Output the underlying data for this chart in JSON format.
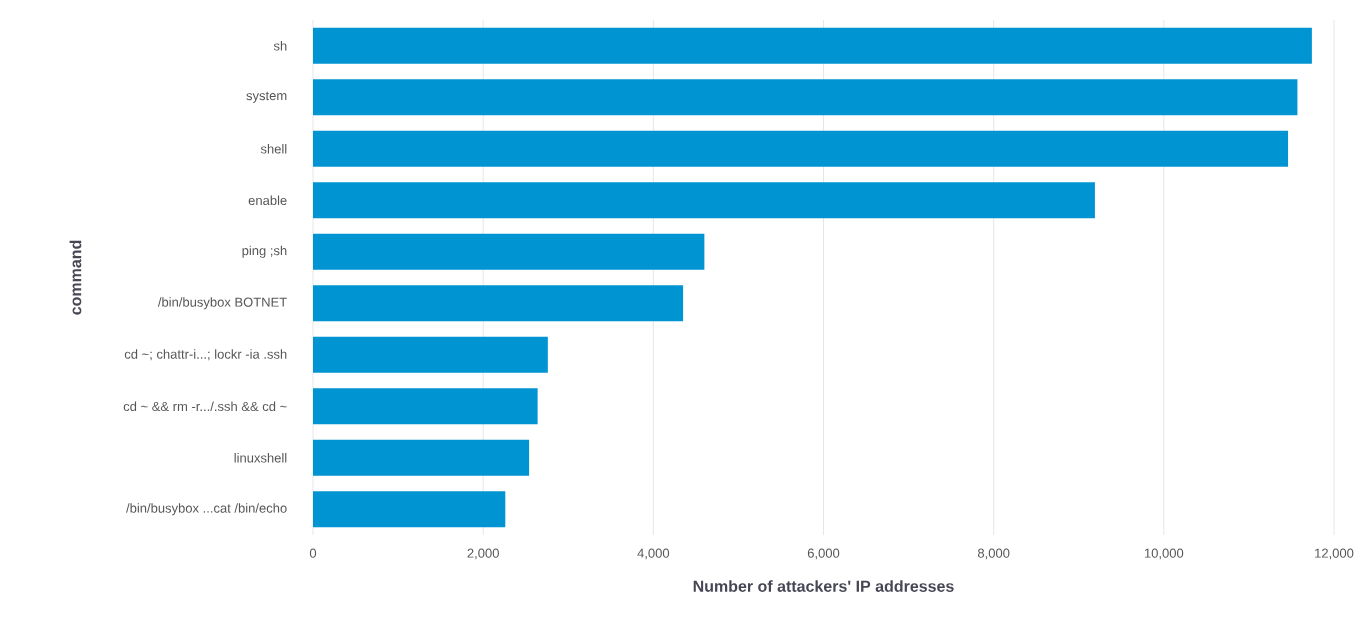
{
  "chart_data": {
    "type": "bar",
    "orientation": "horizontal",
    "xlabel": "Number of attackers' IP addresses",
    "ylabel": "command",
    "categories": [
      "sh",
      "system",
      "shell",
      "enable",
      "ping ;sh",
      "/bin/busybox BOTNET",
      "cd ~; chattr-i...; lockr -ia .ssh",
      "cd ~ && rm -r.../.ssh && cd ~",
      "linuxshell",
      "/bin/busybox ...cat /bin/echo"
    ],
    "values": [
      11740,
      11570,
      11460,
      9190,
      4600,
      4350,
      2760,
      2640,
      2540,
      2260
    ],
    "color": "#0094d3",
    "xlim": [
      0,
      12000
    ],
    "xticks": [
      {
        "value": 0,
        "label": "0"
      },
      {
        "value": 2000,
        "label": "2,000"
      },
      {
        "value": 4000,
        "label": "4,000"
      },
      {
        "value": 6000,
        "label": "6,000"
      },
      {
        "value": 8000,
        "label": "8,000"
      },
      {
        "value": 10000,
        "label": "10,000"
      },
      {
        "value": 12000,
        "label": "12,000"
      }
    ],
    "grid": "x"
  }
}
